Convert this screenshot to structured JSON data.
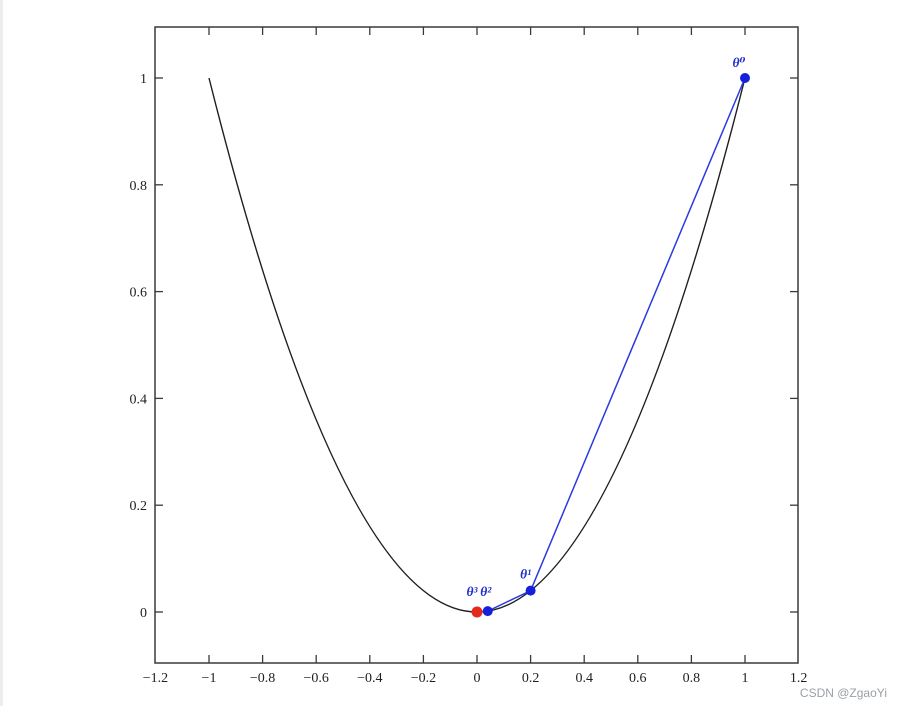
{
  "watermark": "CSDN @ZgaoYi",
  "colors": {
    "background": "#ffffff",
    "axis": "#3a3a3a",
    "tick_label": "#1f1f1f",
    "curve": "#1f1f1f",
    "descent_line": "#2b3ae0",
    "point_blue": "#1520dd",
    "point_red": "#e5281c",
    "point_label": "#2230cc",
    "watermark": "#9aa0a6"
  },
  "chart_data": {
    "type": "line",
    "title": "",
    "xlabel": "",
    "ylabel": "",
    "xlim": [
      -1.2,
      1.2
    ],
    "ylim": [
      -0.096,
      1.096
    ],
    "grid": false,
    "legend": "none",
    "xtick_labels": [
      "−1.2",
      "−1",
      "−0.8",
      "−0.6",
      "−0.4",
      "−0.2",
      "0",
      "0.2",
      "0.4",
      "0.6",
      "0.8",
      "1",
      "1.2"
    ],
    "xtick_label_values": [
      -1.2,
      -1,
      -0.8,
      -0.6,
      -0.4,
      -0.2,
      0,
      0.2,
      0.4,
      0.6,
      0.8,
      1,
      1.2
    ],
    "xtick_mark_values": [
      -1,
      -0.8,
      -0.6,
      -0.4,
      -0.2,
      0,
      0.2,
      0.4,
      0.6,
      0.8,
      1
    ],
    "ytick_labels": [
      "0",
      "0.2",
      "0.4",
      "0.6",
      "0.8",
      "1"
    ],
    "ytick_values": [
      0,
      0.2,
      0.4,
      0.6,
      0.8,
      1
    ],
    "series": [
      {
        "name": "cost-curve",
        "shape": "parabola y = x^2",
        "color_key": "curve",
        "endpoints": [
          [
            -1,
            1
          ],
          [
            1,
            1
          ]
        ],
        "vertex": [
          0,
          0
        ]
      },
      {
        "name": "gradient-descent-path",
        "color_key": "descent_line",
        "x": [
          1,
          0.2,
          0.04,
          0
        ],
        "y": [
          1,
          0.04,
          0.0016,
          0
        ]
      }
    ],
    "points": [
      {
        "label": "θ⁰",
        "x": 1,
        "y": 1,
        "color_key": "point_blue"
      },
      {
        "label": "θ¹",
        "x": 0.2,
        "y": 0.04,
        "color_key": "point_blue"
      },
      {
        "label": "θ²",
        "x": 0.04,
        "y": 0.0016,
        "color_key": "point_blue"
      },
      {
        "label": "θ³",
        "x": 0,
        "y": 0,
        "color_key": "point_red"
      }
    ]
  }
}
